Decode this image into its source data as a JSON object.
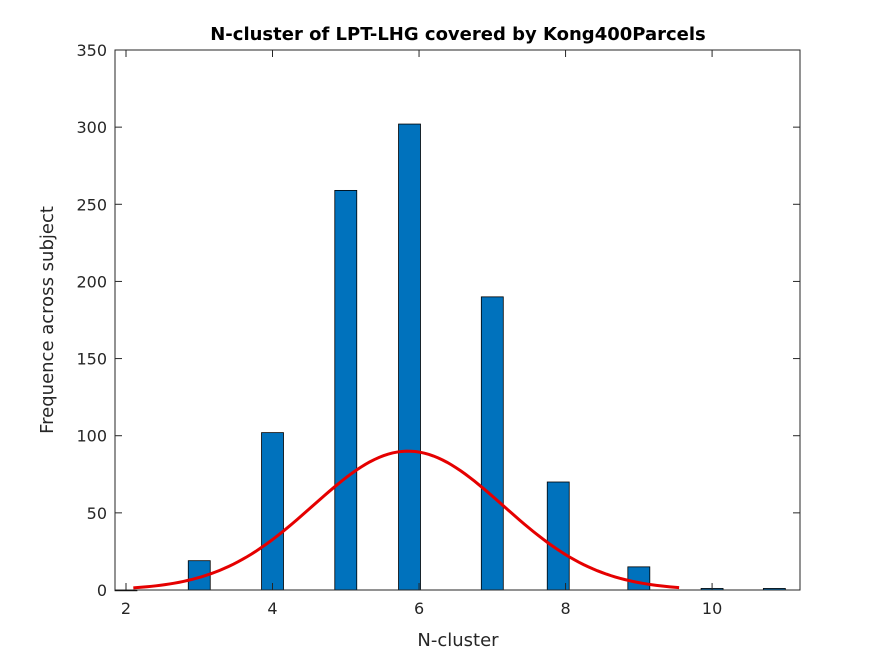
{
  "chart_data": {
    "type": "bar",
    "title": "N-cluster of LPT-LHG covered by Kong400Parcels",
    "xlabel": "N-cluster",
    "ylabel": "Frequence across subject",
    "xlim": [
      1.85,
      11.2
    ],
    "ylim": [
      0,
      350
    ],
    "xticks": [
      2,
      4,
      6,
      8,
      10
    ],
    "yticks": [
      0,
      50,
      100,
      150,
      200,
      250,
      300,
      350
    ],
    "bar_width": 0.3,
    "bars": [
      {
        "x": 2,
        "value": 0
      },
      {
        "x": 3,
        "value": 19
      },
      {
        "x": 4,
        "value": 102
      },
      {
        "x": 5,
        "value": 259
      },
      {
        "x": 5.87,
        "value": 302
      },
      {
        "x": 7,
        "value": 190
      },
      {
        "x": 7.9,
        "value": 70
      },
      {
        "x": 9,
        "value": 15
      },
      {
        "x": 10,
        "value": 1
      },
      {
        "x": 10.85,
        "value": 1
      }
    ],
    "fit_curve": {
      "type": "normal",
      "mean": 5.85,
      "sd": 1.3,
      "peak": 90,
      "x_range": [
        2.1,
        9.55
      ]
    },
    "grid": false,
    "colors": {
      "bar": "#0072bd",
      "bar_edge": "#000000",
      "fit": "#e50000",
      "axis": "#262626"
    }
  }
}
